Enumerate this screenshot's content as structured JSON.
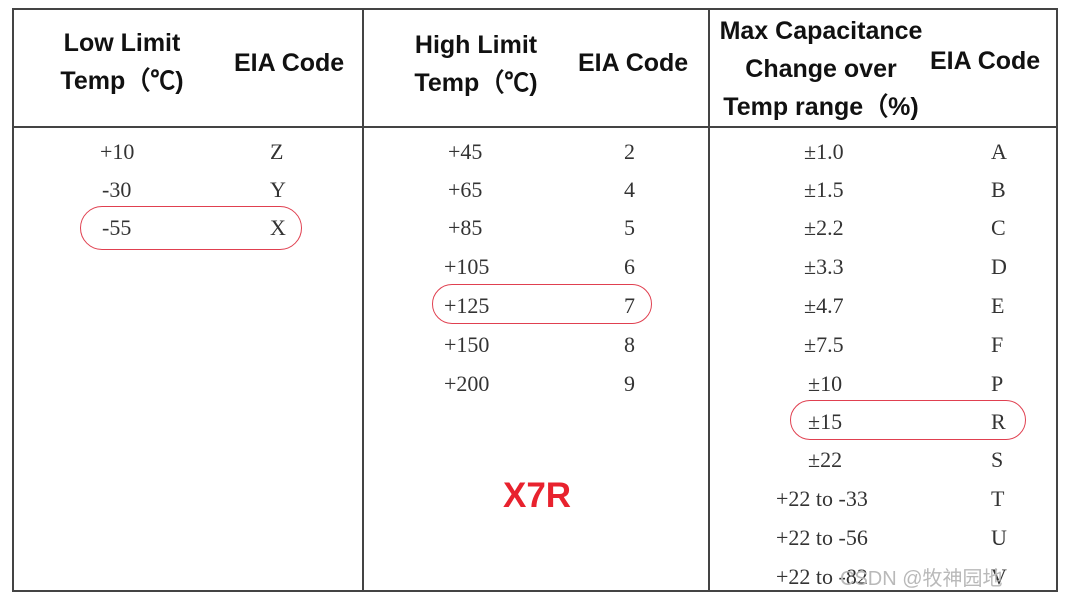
{
  "watermark": "CSDN @牧神园地",
  "label_x7r": "X7R",
  "col1": {
    "header_line1": "Low Limit",
    "header_line2": "Temp（℃)",
    "code_header": "EIA Code",
    "rows": [
      {
        "temp": "+10",
        "code": "Z"
      },
      {
        "temp": "-30",
        "code": "Y"
      },
      {
        "temp": "-55",
        "code": "X"
      }
    ]
  },
  "col2": {
    "header_line1": "High Limit",
    "header_line2": "Temp（℃)",
    "code_header": "EIA Code",
    "rows": [
      {
        "temp": "+45",
        "code": "2"
      },
      {
        "temp": "+65",
        "code": "4"
      },
      {
        "temp": "+85",
        "code": "5"
      },
      {
        "temp": "+105",
        "code": "6"
      },
      {
        "temp": "+125",
        "code": "7"
      },
      {
        "temp": "+150",
        "code": "8"
      },
      {
        "temp": "+200",
        "code": "9"
      }
    ]
  },
  "col3": {
    "header_line1": "Max Capacitance",
    "header_line2": "Change over",
    "header_line3": "Temp range（%)",
    "code_header": "EIA Code",
    "rows": [
      {
        "change": "±1.0",
        "code": "A"
      },
      {
        "change": "±1.5",
        "code": "B"
      },
      {
        "change": "±2.2",
        "code": "C"
      },
      {
        "change": "±3.3",
        "code": "D"
      },
      {
        "change": "±4.7",
        "code": "E"
      },
      {
        "change": "±7.5",
        "code": "F"
      },
      {
        "change": "±10",
        "code": "P"
      },
      {
        "change": "±15",
        "code": "R"
      },
      {
        "change": "±22",
        "code": "S"
      },
      {
        "change": "+22 to -33",
        "code": "T"
      },
      {
        "change": "+22 to -56",
        "code": "U"
      },
      {
        "change": "+22 to -82",
        "code": "V"
      }
    ]
  },
  "highlights": {
    "low_limit_row": 2,
    "high_limit_row": 4,
    "change_row": 7,
    "color": "#e04050"
  },
  "colors": {
    "border": "#444444",
    "x7r": "#e8222e"
  }
}
